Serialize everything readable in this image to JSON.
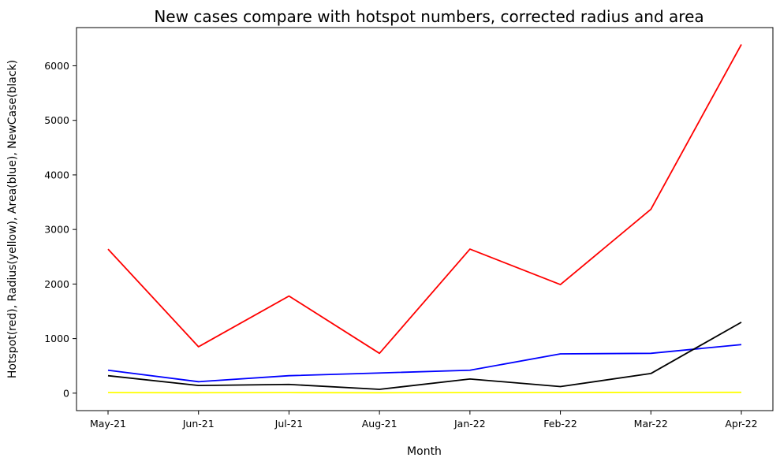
{
  "chart_data": {
    "type": "line",
    "title": "New cases compare with hotspot numbers, corrected radius and area",
    "xlabel": "Month",
    "ylabel": "Hotspot(red), Radius(yellow), Area(blue), NewCase(black)",
    "categories": [
      "May-21",
      "Jun-21",
      "Jul-21",
      "Aug-21",
      "Jan-22",
      "Feb-22",
      "Mar-22",
      "Apr-22"
    ],
    "ylim": [
      -320,
      6700
    ],
    "yticks": [
      0,
      1000,
      2000,
      3000,
      4000,
      5000,
      6000
    ],
    "grid": false,
    "legend": "none",
    "series": [
      {
        "color": "#ff0000",
        "values": [
          2640,
          850,
          1780,
          730,
          2640,
          1990,
          3370,
          6390
        ]
      },
      {
        "color": "#ffff00",
        "values": [
          10,
          8,
          10,
          8,
          10,
          12,
          14,
          15
        ]
      },
      {
        "color": "#0000ff",
        "values": [
          420,
          210,
          320,
          370,
          420,
          720,
          730,
          890
        ]
      },
      {
        "color": "#000000",
        "values": [
          320,
          140,
          160,
          70,
          260,
          120,
          360,
          1300
        ]
      }
    ]
  }
}
